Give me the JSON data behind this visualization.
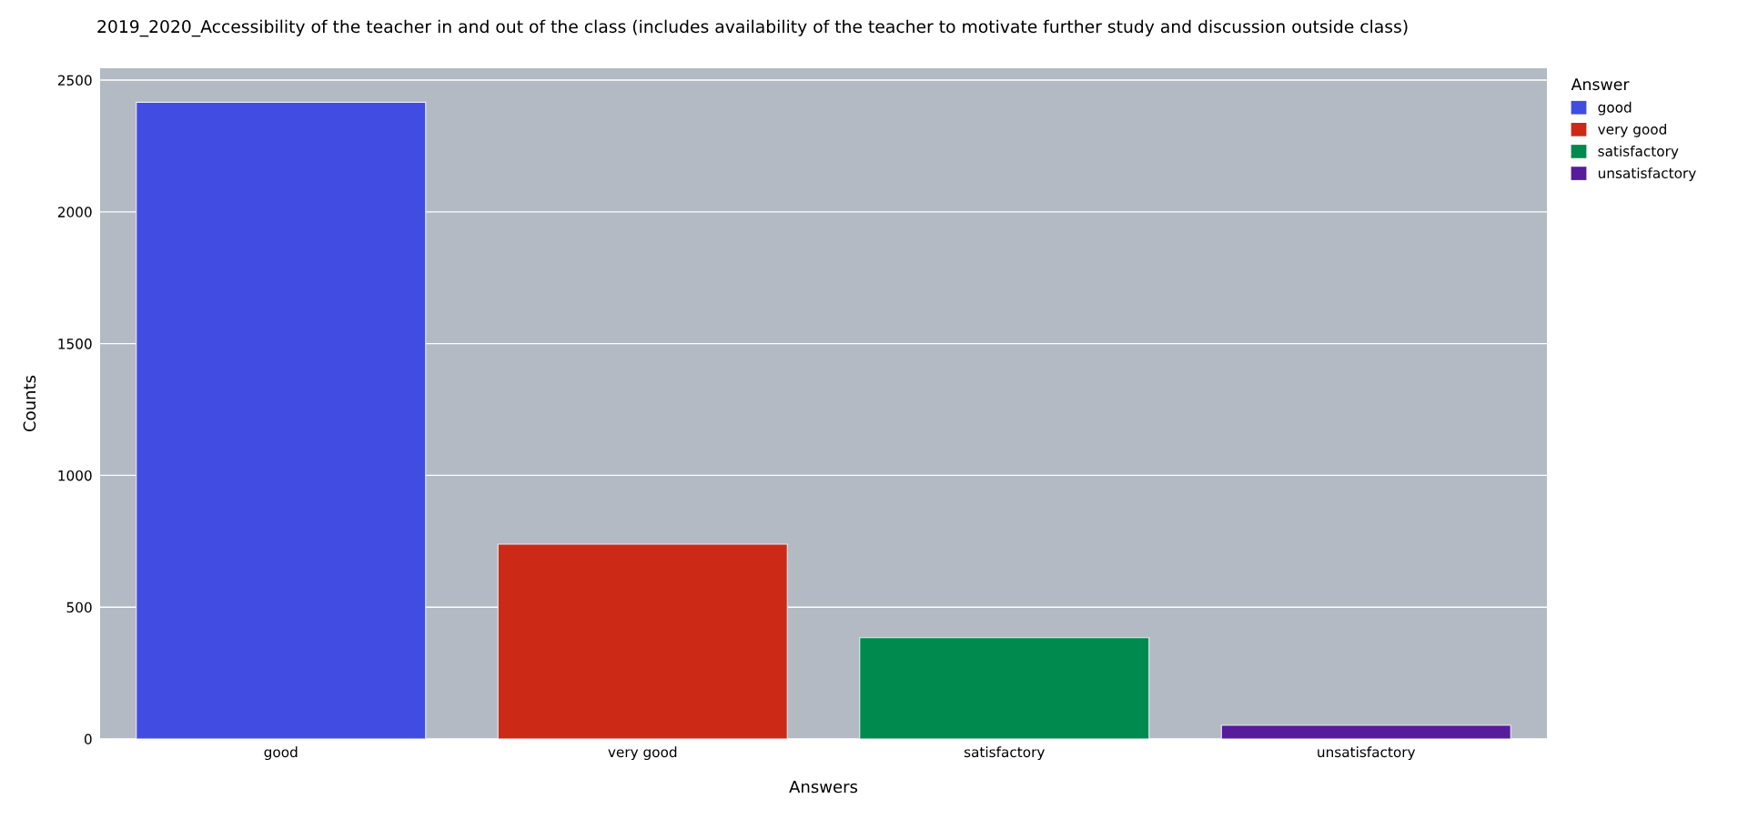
{
  "chart_data": {
    "type": "bar",
    "title": "2019_2020_Accessibility of the teacher in and out of the class (includes availability of the teacher to motivate further study and discussion outside class)",
    "xlabel": "Answers",
    "ylabel": "Counts",
    "legend_title": "Answer",
    "categories": [
      "good",
      "very good",
      "satisfactory",
      "unsatisfactory"
    ],
    "series": [
      {
        "name": "good",
        "color": "#414ce2",
        "values": [
          2416,
          null,
          null,
          null
        ]
      },
      {
        "name": "very good",
        "color": "#cc2a17",
        "values": [
          null,
          739,
          null,
          null
        ]
      },
      {
        "name": "satisfactory",
        "color": "#008a4e",
        "values": [
          null,
          null,
          384,
          null
        ]
      },
      {
        "name": "unsatisfactory",
        "color": "#561c9c",
        "values": [
          null,
          null,
          null,
          52
        ]
      }
    ],
    "ylim": [
      0,
      2545
    ],
    "yticks": [
      0,
      500,
      1000,
      1500,
      2000,
      2500
    ],
    "grid": "y",
    "legend": "top right"
  }
}
